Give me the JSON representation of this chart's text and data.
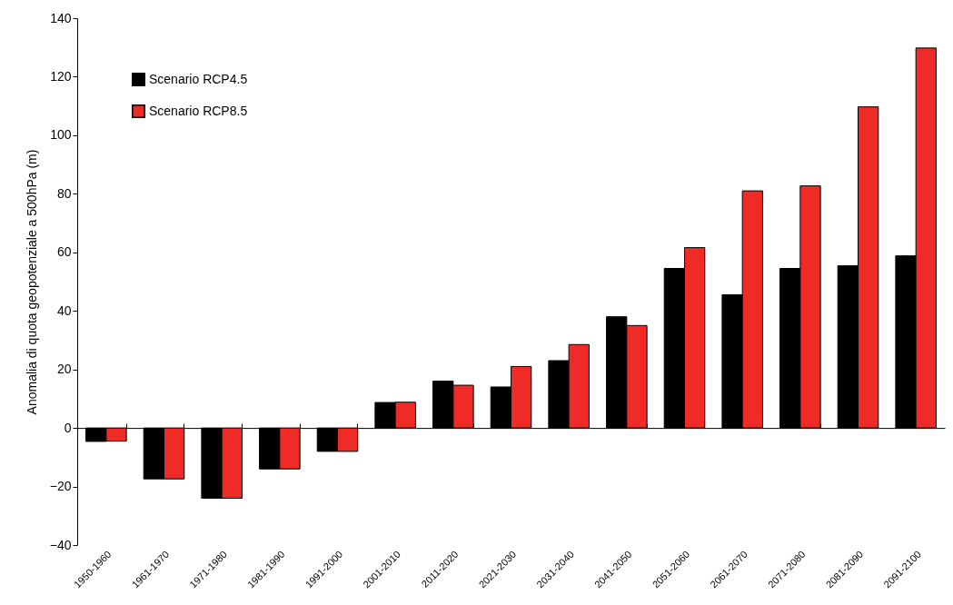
{
  "chart_data": {
    "type": "bar",
    "ylabel": "Anomalia di quota geopotenziale a 500hPa (m)",
    "categories": [
      "1950-1960",
      "1961-1970",
      "1971-1980",
      "1981-1990",
      "1991-2000",
      "2001-2010",
      "2011-2020",
      "2021-2030",
      "2031-2040",
      "2041-2050",
      "2051-2060",
      "2061-2070",
      "2071-2080",
      "2081-2090",
      "2091-2100"
    ],
    "series": [
      {
        "name": "Scenario RCP4.5",
        "color": "#000000",
        "values": [
          -4.6,
          -17.4,
          -24,
          -14,
          -8,
          8.7,
          16,
          14,
          23,
          38,
          54.5,
          45.5,
          54.5,
          55.4,
          58.8
        ]
      },
      {
        "name": "Scenario RCP8.5",
        "color": "#ee2b27",
        "values": [
          -4.5,
          -17.4,
          -24,
          -14,
          -8,
          8.8,
          14.6,
          21,
          28.5,
          35,
          61.6,
          81,
          82.7,
          109.7,
          129.8
        ]
      }
    ],
    "ylim": [
      -40,
      140
    ],
    "yticks": [
      -40,
      -20,
      0,
      20,
      40,
      60,
      80,
      100,
      120,
      140
    ],
    "legend": "top left"
  }
}
